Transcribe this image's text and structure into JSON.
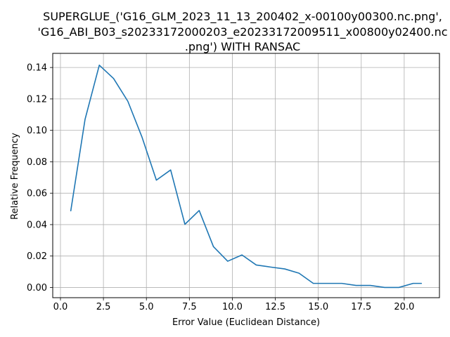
{
  "chart_data": {
    "type": "line",
    "title_lines": [
      "SUPERGLUE_('G16_GLM_2023_11_13_200402_x-00100y00300.nc.png',",
      "'G16_ABI_B03_s20233172000203_e20233172009511_x00800y02400.nc",
      ".png') WITH RANSAC"
    ],
    "xlabel": "Error Value (Euclidean Distance)",
    "ylabel": "Relative Frequency",
    "xlim": [
      -0.45,
      22.05
    ],
    "ylim": [
      -0.0065,
      0.149
    ],
    "xticks": [
      0.0,
      2.5,
      5.0,
      7.5,
      10.0,
      12.5,
      15.0,
      17.5,
      20.0
    ],
    "xtick_labels": [
      "0.0",
      "2.5",
      "5.0",
      "7.5",
      "10.0",
      "12.5",
      "15.0",
      "17.5",
      "20.0"
    ],
    "yticks": [
      0.0,
      0.02,
      0.04,
      0.06,
      0.08,
      0.1,
      0.12,
      0.14
    ],
    "ytick_labels": [
      "0.00",
      "0.02",
      "0.04",
      "0.06",
      "0.08",
      "0.10",
      "0.12",
      "0.14"
    ],
    "grid": true,
    "line_color": "#1f77b4",
    "series": [
      {
        "x": [
          0.6,
          1.43,
          2.26,
          3.09,
          3.92,
          4.75,
          5.58,
          6.41,
          7.24,
          8.07,
          8.9,
          9.73,
          10.56,
          11.39,
          12.22,
          13.05,
          13.88,
          14.71,
          15.54,
          16.37,
          17.2,
          18.03,
          18.86,
          19.69,
          20.52,
          21.0
        ],
        "y": [
          0.0488,
          0.107,
          0.1415,
          0.133,
          0.1185,
          0.0955,
          0.0683,
          0.0748,
          0.0402,
          0.049,
          0.026,
          0.0167,
          0.0207,
          0.0143,
          0.013,
          0.0118,
          0.0091,
          0.0026,
          0.0026,
          0.0026,
          0.0013,
          0.0013,
          0.0,
          0.0,
          0.0026,
          0.0026
        ]
      }
    ]
  }
}
